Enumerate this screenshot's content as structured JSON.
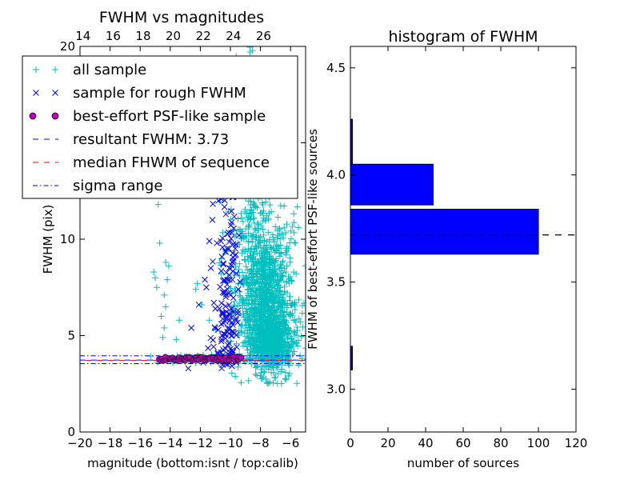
{
  "chart_data": [
    {
      "type": "scatter",
      "title": "FWHM vs magnitudes",
      "xlabel": "magnitude (bottom:isnt / top:calib)",
      "ylabel": "FWHM (pix)",
      "xlim": [
        -20,
        -5
      ],
      "ylim": [
        0,
        20
      ],
      "x_ticks": [
        "−20",
        "−18",
        "−16",
        "−14",
        "−12",
        "−10",
        "−8",
        "−6"
      ],
      "x_tick_values": [
        -20,
        -18,
        -16,
        -14,
        -12,
        -10,
        -8,
        -6
      ],
      "y_ticks": [
        "0",
        "5",
        "10",
        "15",
        "20"
      ],
      "y_tick_values": [
        0,
        5,
        10,
        15,
        20
      ],
      "top_ticks": [
        "14",
        "16",
        "18",
        "20",
        "22",
        "24",
        "26"
      ],
      "top_tick_values": [
        14,
        16,
        18,
        20,
        22,
        24,
        26
      ],
      "top_offset": 33.8,
      "legend_position": "upper-left",
      "legend": [
        {
          "label": "all sample",
          "marker": "+",
          "color": "#00bfbf"
        },
        {
          "label": "sample for rough FWHM",
          "marker": "x",
          "color": "#0000ff"
        },
        {
          "label": "best-effort PSF-like sample",
          "marker": "o",
          "color": "#bf00bf"
        },
        {
          "label": "resultant FWHM: 3.73",
          "marker": "dashed",
          "color": "#0000ff"
        },
        {
          "label": "median FHWM of sequence",
          "marker": "dashed",
          "color": "#ff0000"
        },
        {
          "label": "sigma range",
          "marker": "dashdot",
          "color": "#0000ff"
        }
      ],
      "lines": {
        "resultant_fwhm": 3.73,
        "median_fwhm": 3.73,
        "sigma_low": 3.55,
        "sigma_high": 3.95
      },
      "series": [
        {
          "name": "all sample",
          "marker": "+",
          "color": "#00bfbf",
          "points": [
            [
              -14.8,
              11.8
            ],
            [
              -14.7,
              9.8
            ],
            [
              -15.1,
              8.3
            ],
            [
              -15.0,
              8.0
            ],
            [
              -14.9,
              7.5
            ],
            [
              -14.3,
              8.8
            ],
            [
              -14.1,
              8.6
            ],
            [
              -14.2,
              7.9
            ],
            [
              -14.4,
              7.1
            ],
            [
              -14.3,
              6.5
            ],
            [
              -14.6,
              6.0
            ],
            [
              -14.4,
              5.4
            ],
            [
              -14.5,
              4.9
            ],
            [
              -13.6,
              4.8
            ],
            [
              -13.4,
              5.8
            ],
            [
              -12.3,
              7.4
            ],
            [
              -12.2,
              7.7
            ],
            [
              -11.9,
              6.6
            ],
            [
              -11.4,
              5.8
            ],
            [
              -11.0,
              5.3
            ],
            [
              -10.6,
              9.0
            ],
            [
              -10.2,
              8.0
            ],
            [
              -9.9,
              7.2
            ],
            [
              -10.0,
              5.6
            ],
            [
              -9.8,
              6.4
            ],
            [
              -10.3,
              15.5
            ],
            [
              -10.1,
              14.0
            ],
            [
              -9.7,
              17.5
            ],
            [
              -9.5,
              16.0
            ],
            [
              -9.3,
              12.5
            ]
          ],
          "clusters": [
            {
              "mean_x": -7.6,
              "sd_x": 0.9,
              "mean_y": 6.0,
              "sd_y": 2.4,
              "n": 1100,
              "min_y": 2.5
            },
            {
              "mean_x": -7.2,
              "sd_x": 0.7,
              "mean_y": 4.3,
              "sd_y": 0.8,
              "n": 500,
              "min_y": 2.5
            },
            {
              "mean_x": -8.6,
              "sd_x": 0.6,
              "mean_y": 10.0,
              "sd_y": 3.5,
              "n": 200,
              "min_y": 2.5
            },
            {
              "mean_x": -9.0,
              "sd_x": 0.5,
              "mean_y": 15.0,
              "sd_y": 3.0,
              "n": 60,
              "min_y": 2.5
            },
            {
              "mean_x": -11.5,
              "sd_x": 1.7,
              "mean_y": 3.75,
              "sd_y": 0.12,
              "n": 90,
              "min_y": 2.5
            }
          ]
        },
        {
          "name": "sample for rough FWHM",
          "marker": "x",
          "color": "#0000ff",
          "points": [
            [
              -12.6,
              5.4
            ],
            [
              -12.8,
              3.3
            ],
            [
              -11.6,
              7.5
            ],
            [
              -11.7,
              7.9
            ],
            [
              -12.1,
              6.6
            ],
            [
              -11.1,
              6.7
            ],
            [
              -10.8,
              5.3
            ],
            [
              -11.3,
              8.5
            ],
            [
              -10.9,
              9.8
            ],
            [
              -11.0,
              12.5
            ],
            [
              -11.2,
              11.0
            ],
            [
              -11.4,
              9.9
            ],
            [
              -10.2,
              6.0
            ],
            [
              -9.9,
              5.0
            ],
            [
              -10.1,
              4.6
            ],
            [
              -9.6,
              3.6
            ],
            [
              -9.7,
              3.9
            ],
            [
              -10.0,
              4.3
            ],
            [
              -9.8,
              5.2
            ],
            [
              -9.5,
              6.3
            ],
            [
              -10.5,
              13.5
            ],
            [
              -10.4,
              15.2
            ],
            [
              -10.7,
              17.0
            ],
            [
              -11.0,
              18.2
            ],
            [
              -10.3,
              11.3
            ],
            [
              -11.0,
              6.4
            ],
            [
              -10.6,
              5.6
            ],
            [
              -10.2,
              3.8
            ],
            [
              -9.9,
              3.7
            ],
            [
              -11.8,
              3.6
            ]
          ],
          "clusters": [
            {
              "mean_x": -10.1,
              "sd_x": 0.35,
              "mean_y": 8.0,
              "sd_y": 3.2,
              "n": 130,
              "min_y": 3.3
            },
            {
              "mean_x": -10.4,
              "sd_x": 0.5,
              "mean_y": 4.5,
              "sd_y": 0.8,
              "n": 30,
              "min_y": 3.3
            }
          ]
        },
        {
          "name": "best-effort PSF-like sample",
          "marker": "o",
          "color": "#bf00bf",
          "x_range": [
            -14.7,
            -9.3
          ],
          "y_center": 3.8,
          "y_spread": 0.1,
          "n": 70
        }
      ]
    },
    {
      "type": "bar",
      "orientation": "horizontal",
      "title": "histogram of FWHM",
      "xlabel": "number of sources",
      "ylabel": "FWHM of best-effort PSF-like sources",
      "xlim": [
        0,
        120
      ],
      "ylim": [
        2.8,
        4.6
      ],
      "x_ticks": [
        "0",
        "20",
        "40",
        "60",
        "80",
        "100",
        "120"
      ],
      "x_tick_values": [
        0,
        20,
        40,
        60,
        80,
        100,
        120
      ],
      "y_ticks": [
        "3.0",
        "3.5",
        "4.0",
        "4.5"
      ],
      "y_tick_values": [
        3.0,
        3.5,
        4.0,
        4.5
      ],
      "color": "#0000ff",
      "bins": [
        {
          "y0": 3.09,
          "y1": 3.2,
          "count": 1
        },
        {
          "y0": 3.63,
          "y1": 3.84,
          "count": 100
        },
        {
          "y0": 3.86,
          "y1": 4.05,
          "count": 44
        },
        {
          "y0": 4.05,
          "y1": 4.26,
          "count": 1
        }
      ],
      "reference_line": 3.72
    }
  ]
}
